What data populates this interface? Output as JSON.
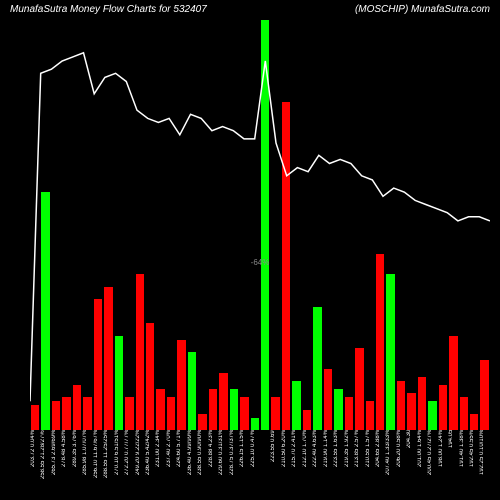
{
  "header": {
    "title_left": "MunafaSutra   Money Flow   Charts for 532407",
    "title_right": "(MOSCHIP) MunafaSutra.com"
  },
  "chart": {
    "type": "bar+line",
    "background_color": "#000000",
    "bar_green": "#00ff00",
    "bar_red": "#ff0000",
    "line_color": "#ffffff",
    "grid_color": "#000000",
    "mid_label": "-64%",
    "bars": [
      {
        "h": 6,
        "color": "red",
        "label": "203.72 0.04%"
      },
      {
        "h": 58,
        "color": "green",
        "label": "258.55 21.28/27%"
      },
      {
        "h": 7,
        "color": "red",
        "label": "265.73 2.69/69%"
      },
      {
        "h": 8,
        "color": "red",
        "label": "278.48 4.58%"
      },
      {
        "h": 11,
        "color": "red",
        "label": "289.35 3.76%"
      },
      {
        "h": 8,
        "color": "red",
        "label": "285.98 1.07/07%"
      },
      {
        "h": 32,
        "color": "red",
        "label": "256.10 11.67/67%"
      },
      {
        "h": 35,
        "color": "red",
        "label": "288.55 11.25/25%"
      },
      {
        "h": 23,
        "color": "green",
        "label": "270.10 6.51/51%"
      },
      {
        "h": 8,
        "color": "red",
        "label": "272.20 0.77/77%"
      },
      {
        "h": 38,
        "color": "red",
        "label": "249.20 9.22/22%"
      },
      {
        "h": 26,
        "color": "red",
        "label": "236.40 5.42/42%"
      },
      {
        "h": 10,
        "color": "red",
        "label": "231.00 2.34%"
      },
      {
        "h": 8,
        "color": "red",
        "label": "237.40 2.70%"
      },
      {
        "h": 22,
        "color": "red",
        "label": "224.60 5.71%"
      },
      {
        "h": 19,
        "color": "green",
        "label": "236.40 4.99/99%"
      },
      {
        "h": 4,
        "color": "red",
        "label": "238.55 0.90/90%"
      },
      {
        "h": 10,
        "color": "red",
        "label": "228.88 4.23%"
      },
      {
        "h": 14,
        "color": "red",
        "label": "229.60 0.31/31%"
      },
      {
        "h": 10,
        "color": "green",
        "label": "228.75 0.37/37%"
      },
      {
        "h": 8,
        "color": "red",
        "label": "226.15 1.15%"
      },
      {
        "h": 3,
        "color": "green",
        "label": "225.10 0.47%"
      },
      {
        "h": 100,
        "color": "green",
        "label": ""
      },
      {
        "h": 8,
        "color": "red",
        "label": "223.55 0.69"
      },
      {
        "h": 80,
        "color": "red",
        "label": "210.50 6.20%"
      },
      {
        "h": 12,
        "color": "green",
        "label": "215.70 2.41%"
      },
      {
        "h": 5,
        "color": "red",
        "label": "212.10 1.70%"
      },
      {
        "h": 30,
        "color": "green",
        "label": "222.40 4.63%"
      },
      {
        "h": 15,
        "color": "red",
        "label": "219.90 1.14%"
      },
      {
        "h": 10,
        "color": "green",
        "label": "223.55 1.63%"
      },
      {
        "h": 8,
        "color": "red",
        "label": "219.35 1.92%"
      },
      {
        "h": 20,
        "color": "red",
        "label": "213.85 2.57%"
      },
      {
        "h": 7,
        "color": "red",
        "label": "210.55 1.57%"
      },
      {
        "h": 43,
        "color": "red",
        "label": "204.65 2.88%"
      },
      {
        "h": 38,
        "color": "green",
        "label": "207.40 1.33/33%"
      },
      {
        "h": 12,
        "color": "red",
        "label": "206.20 0.58%"
      },
      {
        "h": 9,
        "color": "red",
        "label": "204.30"
      },
      {
        "h": 13,
        "color": "red",
        "label": "201.00 1.64%"
      },
      {
        "h": 7,
        "color": "green",
        "label": "200.45 0.27/27%"
      },
      {
        "h": 11,
        "color": "red",
        "label": "198.00 1.24%"
      },
      {
        "h": 23,
        "color": "red",
        "label": "194.05"
      },
      {
        "h": 8,
        "color": "red",
        "label": "191.40 1.38%"
      },
      {
        "h": 4,
        "color": "red",
        "label": "192.45 0.55%"
      },
      {
        "h": 17,
        "color": "red",
        "label": "192.25 0.10/10%"
      }
    ],
    "line_points": [
      7,
      87,
      88,
      90,
      91,
      92,
      82,
      86,
      87,
      85,
      78,
      76,
      75,
      76,
      72,
      77,
      76,
      73,
      74,
      73,
      71,
      71,
      90,
      70,
      62,
      64,
      63,
      67,
      65,
      66,
      65,
      62,
      61,
      57,
      59,
      58,
      56,
      55,
      54,
      53,
      51,
      52,
      52,
      51
    ]
  }
}
